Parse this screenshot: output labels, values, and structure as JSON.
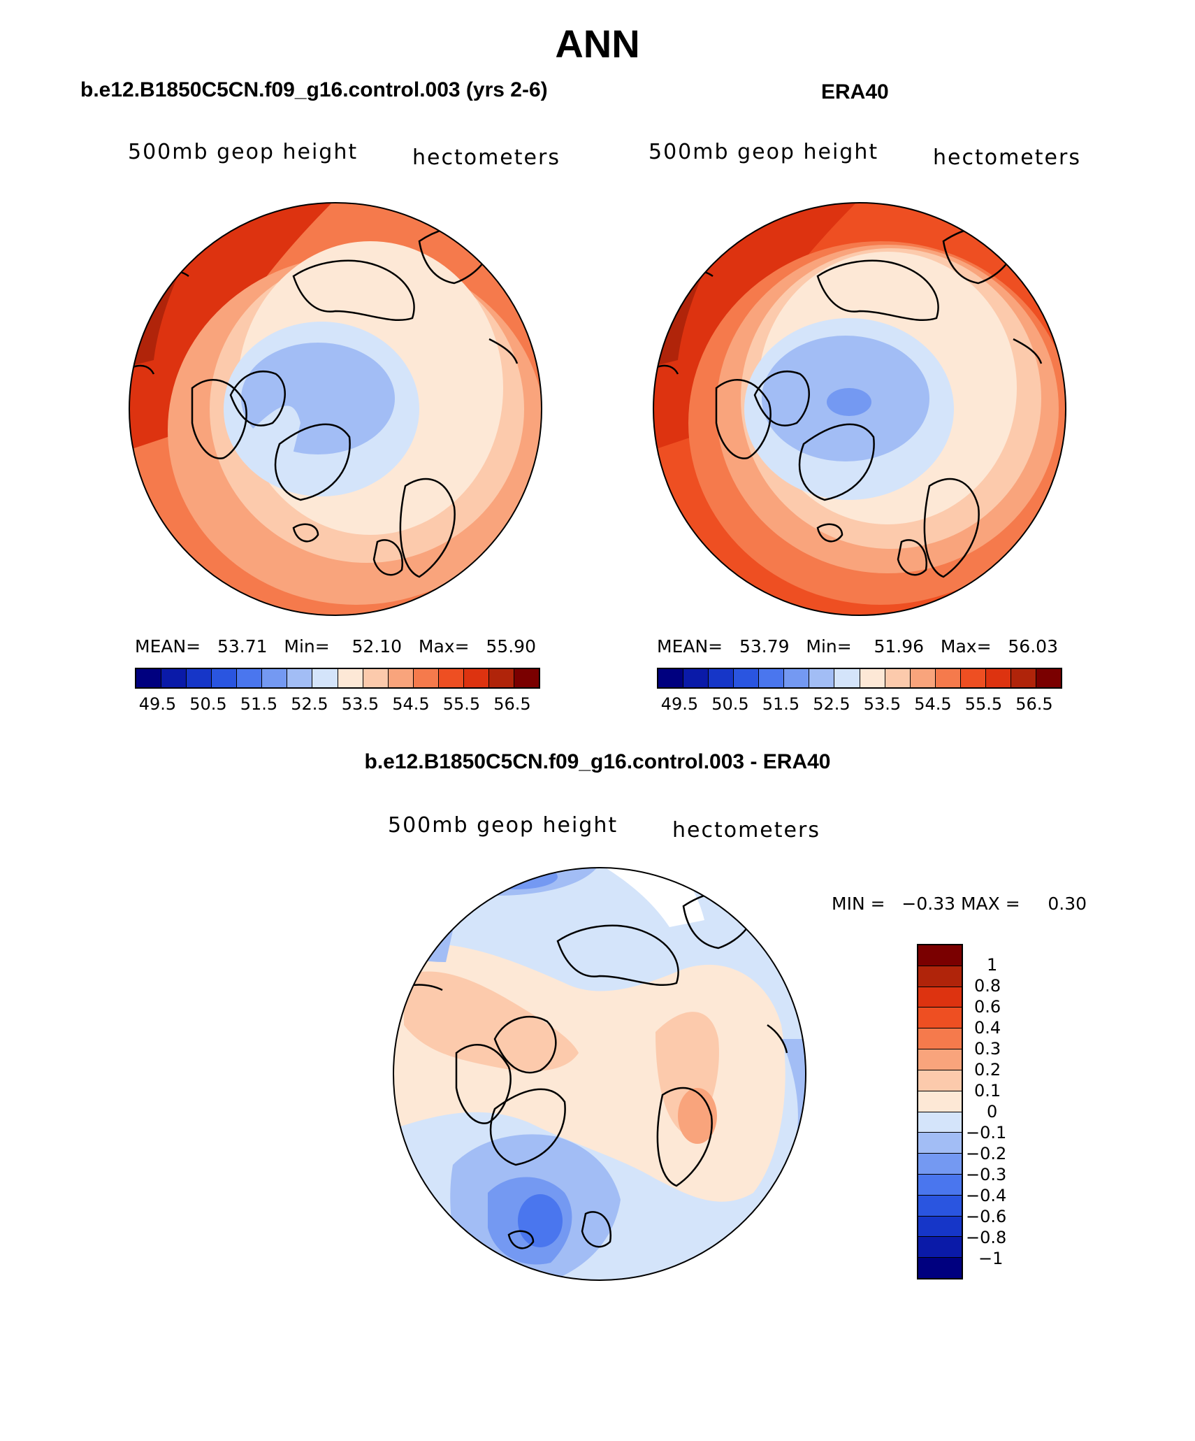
{
  "main_title": "ANN",
  "panels": {
    "model": {
      "title": "b.e12.B1850C5CN.f09_g16.control.003 (yrs 2-6)",
      "variable": "500mb geop height",
      "units": "hectometers",
      "stats": {
        "mean_label": "MEAN=",
        "mean": "53.71",
        "min_label": "Min=",
        "min": "52.10",
        "max_label": "Max=",
        "max": "55.90"
      }
    },
    "obs": {
      "title": "ERA40",
      "variable": "500mb geop height",
      "units": "hectometers",
      "stats": {
        "mean_label": "MEAN=",
        "mean": "53.79",
        "min_label": "Min=",
        "min": "51.96",
        "max_label": "Max=",
        "max": "56.03"
      }
    },
    "diff": {
      "title": "b.e12.B1850C5CN.f09_g16.control.003 - ERA40",
      "variable": "500mb geop height",
      "units": "hectometers",
      "stats": {
        "min_label": "MIN =",
        "min": "−0.33",
        "max_label": "MAX =",
        "max": "0.30"
      }
    }
  },
  "colorbar_main": {
    "colors": [
      "#00007f",
      "#0a1aa8",
      "#1636c8",
      "#2a55e0",
      "#4a76ee",
      "#7499f2",
      "#a2bdf5",
      "#d4e4fa",
      "#fde8d6",
      "#fccaac",
      "#f9a47c",
      "#f57a4c",
      "#ee4f22",
      "#dd3310",
      "#b0240a",
      "#7a0000"
    ],
    "ticks": [
      "49.5",
      "50.5",
      "51.5",
      "52.5",
      "53.5",
      "54.5",
      "55.5",
      "56.5"
    ]
  },
  "colorbar_diff": {
    "colors": [
      "#7a0000",
      "#b0240a",
      "#dd3310",
      "#ee4f22",
      "#f57a4c",
      "#f9a47c",
      "#fccaac",
      "#fde8d6",
      "#d4e4fa",
      "#a2bdf5",
      "#7499f2",
      "#4a76ee",
      "#2a55e0",
      "#1636c8",
      "#0a1aa8",
      "#00007f"
    ],
    "ticks": [
      "1",
      "0.8",
      "0.6",
      "0.4",
      "0.3",
      "0.2",
      "0.1",
      "0",
      "−0.1",
      "−0.2",
      "−0.3",
      "−0.4",
      "−0.6",
      "−0.8",
      "−1"
    ]
  }
}
